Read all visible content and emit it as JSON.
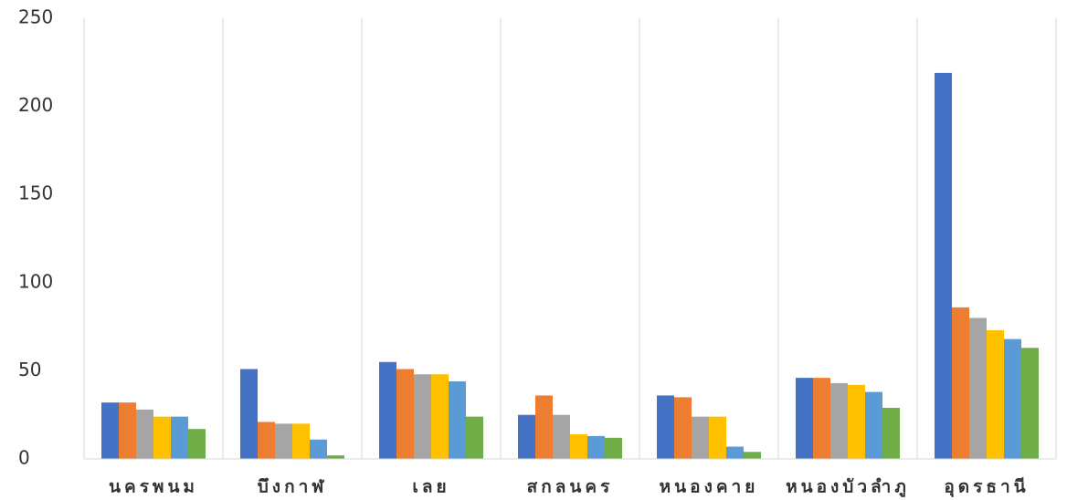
{
  "chart_data": {
    "type": "bar",
    "categories": [
      "นครพนม",
      "บึงกาฬ",
      "เลย",
      "สกลนคร",
      "หนองคาย",
      "หนองบัวลำภู",
      "อุดรธานี"
    ],
    "series": [
      {
        "color": "#4472c4",
        "values": [
          32,
          51,
          55,
          25,
          36,
          46,
          219
        ]
      },
      {
        "color": "#ed7d31",
        "values": [
          32,
          21,
          51,
          36,
          35,
          46,
          86
        ]
      },
      {
        "color": "#a5a5a5",
        "values": [
          28,
          20,
          48,
          25,
          24,
          43,
          80
        ]
      },
      {
        "color": "#ffc000",
        "values": [
          24,
          20,
          48,
          14,
          24,
          42,
          73
        ]
      },
      {
        "color": "#5b9bd5",
        "values": [
          24,
          11,
          44,
          13,
          7,
          38,
          68
        ]
      },
      {
        "color": "#70ad47",
        "values": [
          17,
          2,
          24,
          12,
          4,
          29,
          63
        ]
      }
    ],
    "ylim": [
      0,
      250
    ],
    "yticks": [
      0,
      50,
      100,
      150,
      200,
      250
    ]
  }
}
